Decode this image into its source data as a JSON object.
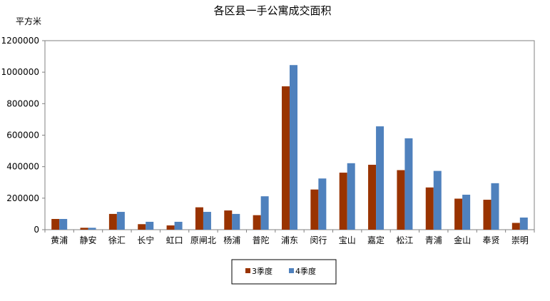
{
  "chart_data": {
    "type": "bar",
    "title": "各区县一手公寓成交面积",
    "ylabel": "平方米",
    "xlabel": "",
    "ylim": [
      0,
      1200000
    ],
    "yticks": [
      0,
      200000,
      400000,
      600000,
      800000,
      1000000,
      1200000
    ],
    "grid": false,
    "legend_position": "bottom",
    "categories": [
      "黄浦",
      "静安",
      "徐汇",
      "长宁",
      "虹口",
      "原闸北",
      "杨浦",
      "普陀",
      "浦东",
      "闵行",
      "宝山",
      "嘉定",
      "松江",
      "青浦",
      "金山",
      "奉贤",
      "崇明"
    ],
    "series": [
      {
        "name": "3季度",
        "color": "#993300",
        "values": [
          68000,
          12000,
          100000,
          35000,
          27000,
          142000,
          122000,
          92000,
          910000,
          255000,
          362000,
          412000,
          378000,
          268000,
          197000,
          190000,
          43000
        ]
      },
      {
        "name": "4季度",
        "color": "#4F81BD",
        "values": [
          68000,
          12000,
          113000,
          50000,
          50000,
          113000,
          100000,
          212000,
          1045000,
          325000,
          422000,
          656000,
          580000,
          373000,
          222000,
          295000,
          77000
        ]
      }
    ]
  }
}
